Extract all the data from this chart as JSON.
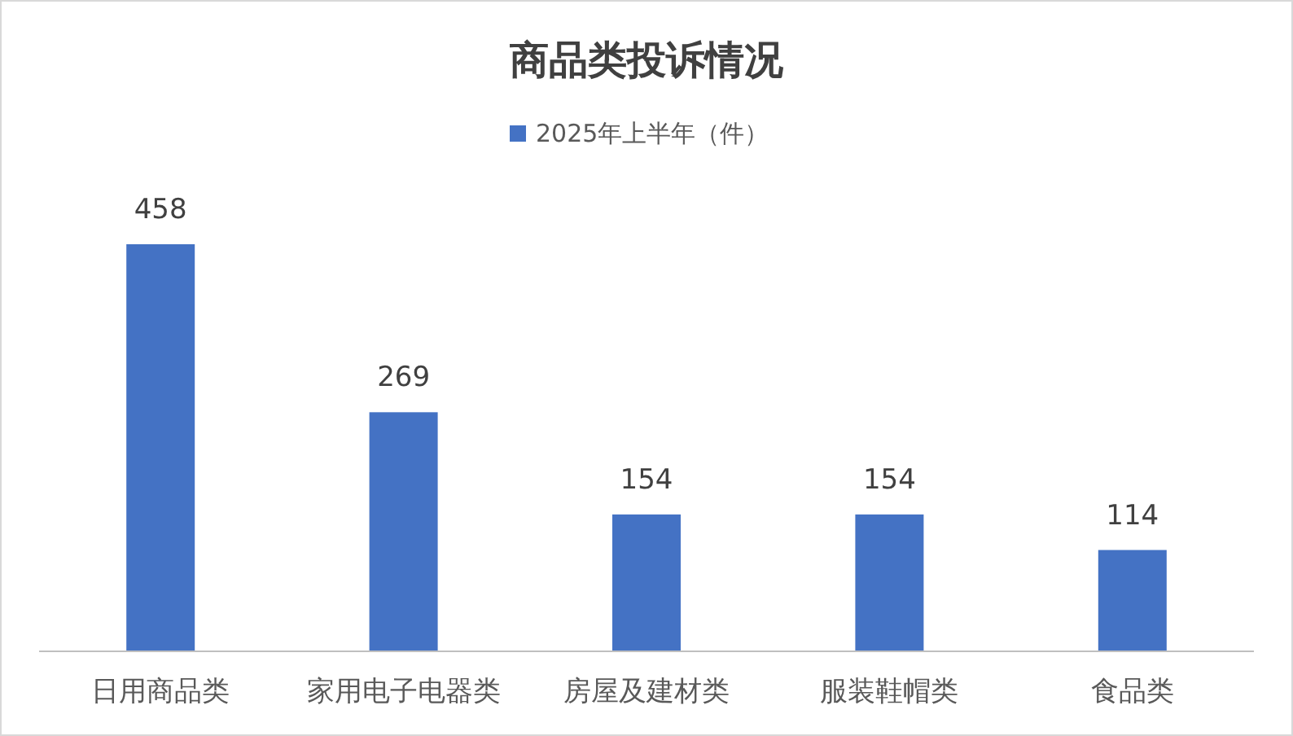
{
  "chart_data": {
    "type": "bar",
    "title": "商品类投诉情况",
    "categories": [
      "日用商品类",
      "家用电子电器类",
      "房屋及建材类",
      "服装鞋帽类",
      "食品类"
    ],
    "series": [
      {
        "name": "2025年上半年（件）",
        "color": "#4472c4",
        "values": [
          458,
          269,
          154,
          154,
          114
        ]
      }
    ],
    "data_labels": true,
    "legend": "top",
    "grid": false
  }
}
